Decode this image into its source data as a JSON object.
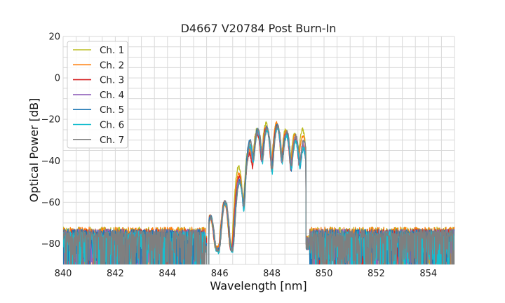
{
  "chart_data": {
    "type": "line",
    "title": "D4667 V20784 Post Burn-In",
    "xlabel": "Wavelength [nm]",
    "ylabel": "Optical Power [dB]",
    "xlim": [
      840,
      855
    ],
    "ylim": [
      -90,
      20
    ],
    "xticks": [
      840,
      842,
      844,
      846,
      848,
      850,
      852,
      854
    ],
    "yticks": [
      20,
      0,
      -20,
      -40,
      -60,
      -80
    ],
    "xtick_labels": [
      "840",
      "842",
      "844",
      "846",
      "848",
      "850",
      "852",
      "854"
    ],
    "ytick_labels": [
      "20",
      "0",
      "−20",
      "−40",
      "−60",
      "−80"
    ],
    "grid": true,
    "legend_position": "top-left",
    "series": [
      {
        "name": "Ch. 1",
        "color": "#bcbd22",
        "peaks": [
          [
            846.75,
            -43
          ],
          [
            847.15,
            -33
          ],
          [
            847.45,
            -25
          ],
          [
            847.8,
            -22
          ],
          [
            848.2,
            -22
          ],
          [
            848.55,
            -25
          ],
          [
            848.9,
            -27
          ],
          [
            849.2,
            -25
          ]
        ],
        "noise_floor": -76
      },
      {
        "name": "Ch. 2",
        "color": "#ff7f0e",
        "peaks": [
          [
            846.75,
            -46
          ],
          [
            847.15,
            -35
          ],
          [
            847.45,
            -26
          ],
          [
            847.8,
            -23
          ],
          [
            848.2,
            -22
          ],
          [
            848.55,
            -26
          ],
          [
            848.9,
            -28
          ],
          [
            849.2,
            -28
          ]
        ],
        "noise_floor": -76
      },
      {
        "name": "Ch. 3",
        "color": "#d62728",
        "peaks": [
          [
            846.75,
            -48
          ],
          [
            847.15,
            -37
          ],
          [
            847.45,
            -27
          ],
          [
            847.8,
            -24
          ],
          [
            848.2,
            -23
          ],
          [
            848.55,
            -27
          ],
          [
            848.9,
            -30
          ],
          [
            849.2,
            -33
          ]
        ],
        "noise_floor": -77
      },
      {
        "name": "Ch. 4",
        "color": "#9467bd",
        "peaks": [
          [
            846.75,
            -49
          ],
          [
            847.15,
            -34
          ],
          [
            847.45,
            -26
          ],
          [
            847.8,
            -24
          ],
          [
            848.2,
            -24
          ],
          [
            848.55,
            -27
          ],
          [
            848.9,
            -29
          ],
          [
            849.2,
            -32
          ]
        ],
        "noise_floor": -77
      },
      {
        "name": "Ch. 5",
        "color": "#1f77b4",
        "peaks": [
          [
            846.75,
            -50
          ],
          [
            847.15,
            -30
          ],
          [
            847.45,
            -25
          ],
          [
            847.8,
            -24
          ],
          [
            848.2,
            -23
          ],
          [
            848.55,
            -27
          ],
          [
            848.9,
            -31
          ],
          [
            849.2,
            -35
          ]
        ],
        "noise_floor": -77
      },
      {
        "name": "Ch. 6",
        "color": "#17becf",
        "peaks": [
          [
            846.75,
            -51
          ],
          [
            847.15,
            -33
          ],
          [
            847.45,
            -26
          ],
          [
            847.8,
            -25
          ],
          [
            848.2,
            -24
          ],
          [
            848.55,
            -28
          ],
          [
            848.9,
            -31
          ],
          [
            849.2,
            -34
          ]
        ],
        "noise_floor": -78
      },
      {
        "name": "Ch. 7",
        "color": "#7f7f7f",
        "peaks": [
          [
            846.75,
            -50
          ],
          [
            847.15,
            -31
          ],
          [
            847.45,
            -25
          ],
          [
            847.8,
            -24
          ],
          [
            848.2,
            -23
          ],
          [
            848.55,
            -26
          ],
          [
            848.9,
            -28
          ],
          [
            849.2,
            -30
          ]
        ],
        "noise_floor": -77
      }
    ],
    "shoulder_peaks": [
      [
        845.65,
        -67
      ],
      [
        846.2,
        -60
      ]
    ]
  }
}
